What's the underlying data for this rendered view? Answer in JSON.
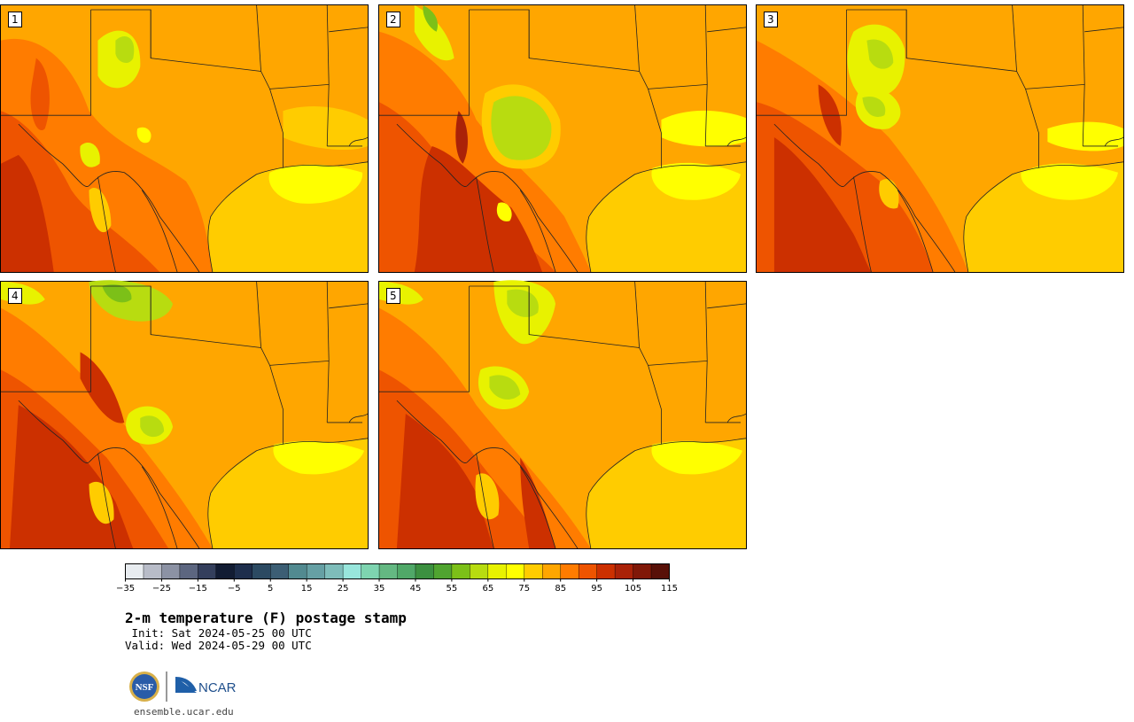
{
  "panels": [
    {
      "label": "1"
    },
    {
      "label": "2"
    },
    {
      "label": "3"
    },
    {
      "label": "4"
    },
    {
      "label": "5"
    }
  ],
  "colorbar": {
    "ticks": [
      "−35",
      "−25",
      "−15",
      "−5",
      "5",
      "15",
      "25",
      "35",
      "45",
      "55",
      "65",
      "75",
      "85",
      "95",
      "105",
      "115"
    ],
    "colors": [
      "#e8ecf0",
      "#b8bcc8",
      "#8c92a4",
      "#5c6680",
      "#343f5c",
      "#121c33",
      "#1e2e4c",
      "#2c4a62",
      "#3c5e74",
      "#528a90",
      "#66a0a4",
      "#7ebdba",
      "#98e6dc",
      "#7ed4b0",
      "#64b882",
      "#50a868",
      "#3c9040",
      "#50a430",
      "#7cc018",
      "#b8dc10",
      "#e8f200",
      "#ffff00",
      "#ffcc00",
      "#ffa600",
      "#ff7c00",
      "#ee5400",
      "#cc3000",
      "#aa2208",
      "#801808",
      "#581008"
    ]
  },
  "title": "2-m temperature (F) postage stamp",
  "init": " Init: Sat 2024-05-25 00 UTC",
  "valid": "Valid: Wed 2024-05-29 00 UTC",
  "logos": {
    "nsf": "NSF",
    "ncar": "NCAR"
  },
  "url": "ensemble.ucar.edu"
}
